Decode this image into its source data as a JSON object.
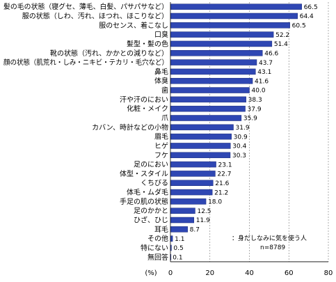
{
  "chart_data": {
    "type": "bar",
    "orientation": "horizontal",
    "categories": [
      "髪の毛の状態（寝グセ、薄毛、白髪、パサパサなど）",
      "服の状態（しわ、汚れ、ほつれ、ほこりなど）",
      "服のセンス、着こなし",
      "口臭",
      "髪型・髪の色",
      "靴の状態（汚れ、かかとの減りなど）",
      "顔の状態（肌荒れ・しみ・ニキビ・テカリ・毛穴など）",
      "鼻毛",
      "体臭",
      "歯",
      "汗や汗のにおい",
      "化粧・メイク",
      "爪",
      "カバン、時計などの小物",
      "眉毛",
      "ヒゲ",
      "フケ",
      "足のにおい",
      "体型・スタイル",
      "くちびる",
      "体毛・ムダ毛",
      "手足の肌の状態",
      "足のかかと",
      "ひざ、ひじ",
      "耳毛",
      "その他",
      "特にない",
      "無回答"
    ],
    "values": [
      66.5,
      64.4,
      60.5,
      52.2,
      51.4,
      46.6,
      43.7,
      43.1,
      41.6,
      40.0,
      38.3,
      37.9,
      35.9,
      31.9,
      30.9,
      30.4,
      30.3,
      23.1,
      22.7,
      21.6,
      21.2,
      18.0,
      12.5,
      11.9,
      8.7,
      1.1,
      0.5,
      0.1
    ],
    "value_labels": [
      "66.5",
      "64.4",
      "60.5",
      "52.2",
      "51.4",
      "46.6",
      "43.7",
      "43.1",
      "41.6",
      "40.0",
      "38.3",
      "37.9",
      "35.9",
      "31.9",
      "30.9",
      "30.4",
      "30.3",
      "23.1",
      "22.7",
      "21.6",
      "21.2",
      "18.0",
      "12.5",
      "11.9",
      "8.7",
      "1.1",
      "0.5",
      "0.1"
    ],
    "xlim": [
      0,
      80
    ],
    "xticks": [
      0,
      20,
      40,
      60,
      80
    ],
    "xtick_labels": [
      "0",
      "20",
      "40",
      "60",
      "80"
    ],
    "unit_label": "(%)",
    "grid": true,
    "legend_note": "：身だしなみに気を使う人",
    "sample_note": "n=8789",
    "colors": {
      "bar": "#2f47b3",
      "bar_edge": "#1a2a78",
      "grid": "#777777"
    }
  }
}
